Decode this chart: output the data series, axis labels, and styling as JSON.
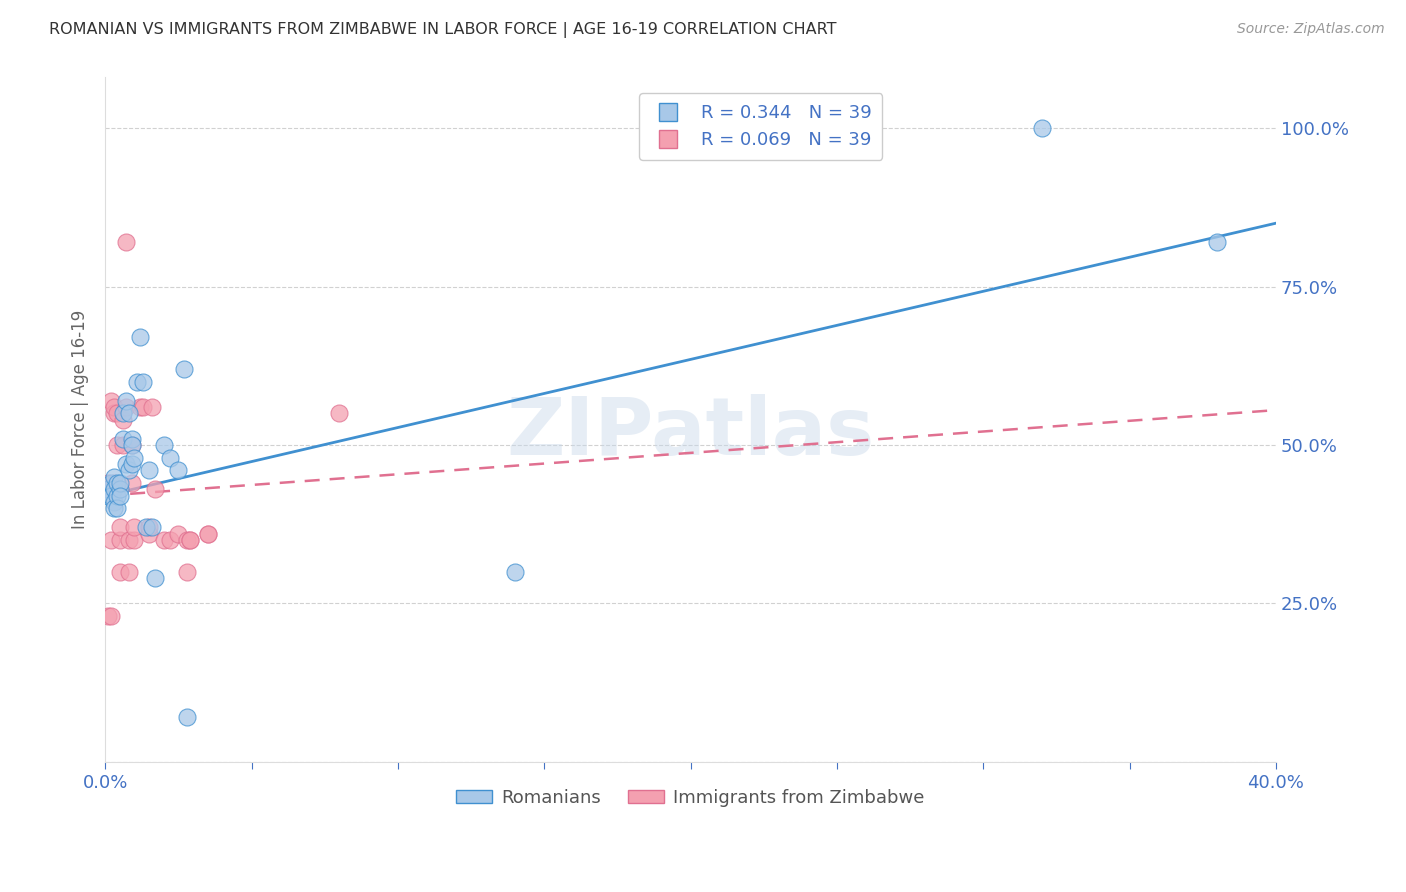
{
  "title": "ROMANIAN VS IMMIGRANTS FROM ZIMBABWE IN LABOR FORCE | AGE 16-19 CORRELATION CHART",
  "source": "Source: ZipAtlas.com",
  "ylabel": "In Labor Force | Age 16-19",
  "legend_romanian": "Romanians",
  "legend_zimbabwe": "Immigrants from Zimbabwe",
  "R_romanian": 0.344,
  "N_romanian": 39,
  "R_zimbabwe": 0.069,
  "N_zimbabwe": 39,
  "color_romanian": "#a8c8e8",
  "color_zimbabwe": "#f4a0b0",
  "color_romanian_line": "#4090d0",
  "color_zimbabwe_line": "#e07090",
  "color_axis_labels": "#4472c4",
  "watermark": "ZIPatlas",
  "xmin": 0.0,
  "xmax": 0.4,
  "ymin": 0.0,
  "ymax": 1.08,
  "romanian_x": [
    0.001,
    0.001,
    0.002,
    0.002,
    0.003,
    0.003,
    0.003,
    0.003,
    0.004,
    0.004,
    0.004,
    0.005,
    0.005,
    0.005,
    0.006,
    0.006,
    0.007,
    0.007,
    0.008,
    0.008,
    0.009,
    0.009,
    0.009,
    0.01,
    0.011,
    0.012,
    0.013,
    0.014,
    0.015,
    0.016,
    0.017,
    0.02,
    0.022,
    0.025,
    0.027,
    0.028,
    0.14,
    0.32,
    0.38
  ],
  "romanian_y": [
    0.43,
    0.42,
    0.44,
    0.42,
    0.45,
    0.43,
    0.41,
    0.4,
    0.44,
    0.42,
    0.4,
    0.43,
    0.44,
    0.42,
    0.51,
    0.55,
    0.57,
    0.47,
    0.55,
    0.46,
    0.51,
    0.5,
    0.47,
    0.48,
    0.6,
    0.67,
    0.6,
    0.37,
    0.46,
    0.37,
    0.29,
    0.5,
    0.48,
    0.46,
    0.62,
    0.07,
    0.3,
    1.0,
    0.82
  ],
  "zimbabwe_x": [
    0.001,
    0.001,
    0.002,
    0.002,
    0.002,
    0.003,
    0.003,
    0.003,
    0.004,
    0.004,
    0.005,
    0.005,
    0.005,
    0.006,
    0.006,
    0.007,
    0.007,
    0.008,
    0.008,
    0.009,
    0.009,
    0.01,
    0.01,
    0.012,
    0.013,
    0.015,
    0.015,
    0.016,
    0.017,
    0.02,
    0.022,
    0.025,
    0.028,
    0.028,
    0.029,
    0.029,
    0.035,
    0.035,
    0.08
  ],
  "zimbabwe_y": [
    0.44,
    0.23,
    0.23,
    0.35,
    0.57,
    0.55,
    0.56,
    0.44,
    0.5,
    0.55,
    0.35,
    0.37,
    0.3,
    0.5,
    0.54,
    0.56,
    0.82,
    0.3,
    0.35,
    0.44,
    0.5,
    0.35,
    0.37,
    0.56,
    0.56,
    0.36,
    0.37,
    0.56,
    0.43,
    0.35,
    0.35,
    0.36,
    0.3,
    0.35,
    0.35,
    0.35,
    0.36,
    0.36,
    0.55
  ],
  "trend_ro_x0": 0.0,
  "trend_ro_y0": 0.42,
  "trend_ro_x1": 0.4,
  "trend_ro_y1": 0.85,
  "trend_zw_x0": 0.0,
  "trend_zw_y0": 0.42,
  "trend_zw_x1": 0.4,
  "trend_zw_y1": 0.555,
  "y_ticks": [
    0.0,
    0.25,
    0.5,
    0.75,
    1.0
  ],
  "y_tick_labels": [
    "",
    "25.0%",
    "50.0%",
    "75.0%",
    "100.0%"
  ]
}
